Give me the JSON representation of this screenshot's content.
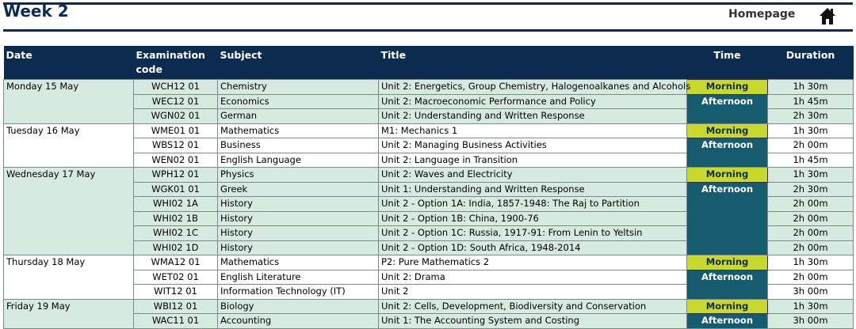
{
  "header": {
    "title": "Week 2",
    "homepage": "Homepage"
  },
  "table": {
    "columns": [
      "Date",
      "Examination code",
      "Subject",
      "Title",
      "Time",
      "Duration"
    ],
    "days": [
      {
        "date": "Monday 15 May",
        "morning": "Morning",
        "afternoon": "Afternoon",
        "exams": [
          [
            "WCH12 01",
            "Chemistry",
            "Unit 2: Energetics, Group Chemistry, Halogenoalkanes and Alcohols",
            "1h 30m"
          ],
          [
            "WEC12 01",
            "Economics",
            "Unit 2: Macroeconomic Performance and Policy",
            "1h 45m"
          ],
          [
            "WGN02 01",
            "German",
            "Unit 2: Understanding and Written Response",
            "2h 30m"
          ]
        ]
      },
      {
        "date": "Tuesday 16 May",
        "morning": "Morning",
        "afternoon": "Afternoon",
        "exams": [
          [
            "WME01 01",
            "Mathematics",
            "M1: Mechanics 1",
            "1h 30m"
          ],
          [
            "WBS12 01",
            "Business",
            "Unit 2: Managing Business Activities",
            "2h 00m"
          ],
          [
            "WEN02 01",
            "English Language",
            "Unit 2: Language in Transition",
            "1h 45m"
          ]
        ]
      },
      {
        "date": "Wednesday 17 May",
        "morning": "Morning",
        "afternoon": "Afternoon",
        "exams": [
          [
            "WPH12 01",
            "Physics",
            "Unit 2: Waves and Electricity",
            "1h 30m"
          ],
          [
            "WGK01 01",
            "Greek",
            "Unit 1: Understanding and Written Response",
            "2h 30m"
          ],
          [
            "WHI02 1A",
            "History",
            "Unit 2 - Option 1A: India, 1857-1948: The Raj to Partition",
            "2h 00m"
          ],
          [
            "WHI02 1B",
            "History",
            "Unit 2 - Option 1B: China, 1900-76",
            "2h 00m"
          ],
          [
            "WHI02 1C",
            "History",
            "Unit 2 - Option 1C: Russia, 1917-91: From Lenin to Yeltsin",
            "2h 00m"
          ],
          [
            "WHI02 1D",
            "History",
            "Unit 2 - Option 1D: South Africa, 1948-2014",
            "2h 00m"
          ]
        ]
      },
      {
        "date": "Thursday 18 May",
        "morning": "Morning",
        "afternoon": "Afternoon",
        "exams": [
          [
            "WMA12 01",
            "Mathematics",
            "P2: Pure Mathematics 2",
            "1h 30m"
          ],
          [
            "WET02 01",
            "English Literature",
            "Unit 2: Drama",
            "2h 00m"
          ],
          [
            "WIT12 01",
            "Information Technology (IT)",
            "Unit 2",
            "3h 00m"
          ]
        ]
      },
      {
        "date": "Friday 19 May",
        "morning": "Morning",
        "afternoon": "Afternoon",
        "exams": [
          [
            "WBI12 01",
            "Biology",
            "Unit 2: Cells, Development, Biodiversity and Conservation",
            "1h 30m"
          ],
          [
            "WAC11 01",
            "Accounting",
            "Unit 1: The Accounting System and Costing",
            "3h 00m"
          ]
        ]
      }
    ]
  }
}
